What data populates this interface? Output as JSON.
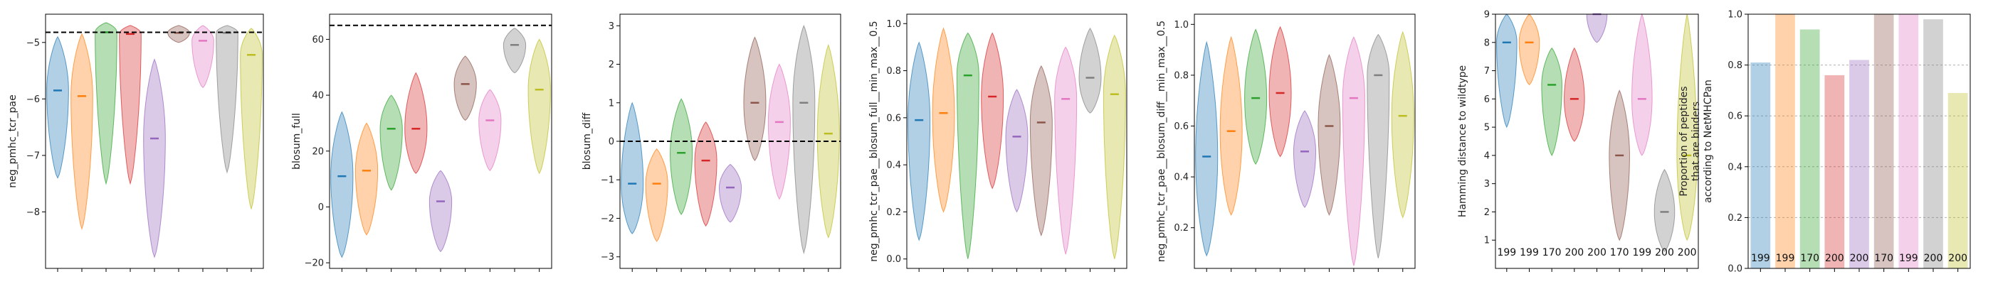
{
  "palette": [
    "#1f77b4",
    "#ff7f0e",
    "#2ca02c",
    "#d62728",
    "#9467bd",
    "#8c564b",
    "#e377c2",
    "#7f7f7f",
    "#bcbd22"
  ],
  "chart_data": [
    {
      "type": "violin",
      "ylabel": "neg_pmhc_tcr_pae",
      "ylim": [
        -9.0,
        -4.5
      ],
      "yticks": [
        -8,
        -7,
        -6,
        -5
      ],
      "tick_labels": [
        "−8",
        "−7",
        "−6",
        "−5"
      ],
      "hline": -4.82,
      "violins": [
        {
          "lo": -7.4,
          "hi": -4.9,
          "med": -5.85
        },
        {
          "lo": -8.3,
          "hi": -4.85,
          "med": -5.95
        },
        {
          "lo": -7.5,
          "hi": -4.65,
          "med": -4.82
        },
        {
          "lo": -7.5,
          "hi": -4.7,
          "med": -4.85
        },
        {
          "lo": -8.8,
          "hi": -5.3,
          "med": -6.7
        },
        {
          "lo": -5.0,
          "hi": -4.7,
          "med": -4.83
        },
        {
          "lo": -5.8,
          "hi": -4.7,
          "med": -4.97
        },
        {
          "lo": -7.3,
          "hi": -4.7,
          "med": -4.83
        },
        {
          "lo": -7.95,
          "hi": -4.75,
          "med": -5.22
        }
      ]
    },
    {
      "type": "violin",
      "ylabel": "blosum_full",
      "ylim": [
        -22,
        69
      ],
      "yticks": [
        -20,
        0,
        20,
        40,
        60
      ],
      "tick_labels": [
        "−20",
        "0",
        "20",
        "40",
        "60"
      ],
      "hline": 65,
      "violins": [
        {
          "lo": -18,
          "hi": 34,
          "med": 11
        },
        {
          "lo": -10,
          "hi": 30,
          "med": 13
        },
        {
          "lo": 6,
          "hi": 40,
          "med": 28
        },
        {
          "lo": 12,
          "hi": 48,
          "med": 28
        },
        {
          "lo": -16,
          "hi": 13,
          "med": 2
        },
        {
          "lo": 31,
          "hi": 54,
          "med": 44
        },
        {
          "lo": 13,
          "hi": 42,
          "med": 31
        },
        {
          "lo": 48,
          "hi": 64,
          "med": 58
        },
        {
          "lo": 12,
          "hi": 60,
          "med": 42
        }
      ]
    },
    {
      "type": "violin",
      "ylabel": "blosum_diff",
      "ylim": [
        -3.3,
        3.3
      ],
      "yticks": [
        -3,
        -2,
        -1,
        0,
        1,
        2,
        3
      ],
      "tick_labels": [
        "−3",
        "−2",
        "−1",
        "0",
        "1",
        "2",
        "3"
      ],
      "hline": 0,
      "violins": [
        {
          "lo": -2.4,
          "hi": 1.0,
          "med": -1.1
        },
        {
          "lo": -2.6,
          "hi": -0.2,
          "med": -1.1
        },
        {
          "lo": -1.9,
          "hi": 1.1,
          "med": -0.3
        },
        {
          "lo": -2.2,
          "hi": 0.5,
          "med": -0.5
        },
        {
          "lo": -2.1,
          "hi": -0.6,
          "med": -1.2
        },
        {
          "lo": -0.5,
          "hi": 2.7,
          "med": 1.0
        },
        {
          "lo": -1.5,
          "hi": 2.0,
          "med": 0.5
        },
        {
          "lo": -2.9,
          "hi": 3.0,
          "med": 1.0
        },
        {
          "lo": -2.5,
          "hi": 2.5,
          "med": 0.2
        }
      ]
    },
    {
      "type": "violin",
      "ylabel": "neg_pmhc_tcr_pae__blosum_full__min_max__0.5",
      "ylim": [
        -0.04,
        1.04
      ],
      "yticks": [
        0.0,
        0.2,
        0.4,
        0.6,
        0.8,
        1.0
      ],
      "tick_labels": [
        "0.0",
        "0.2",
        "0.4",
        "0.6",
        "0.8",
        "1.0"
      ],
      "hline": null,
      "violins": [
        {
          "lo": 0.08,
          "hi": 0.92,
          "med": 0.59
        },
        {
          "lo": 0.2,
          "hi": 0.98,
          "med": 0.62
        },
        {
          "lo": 0.0,
          "hi": 0.96,
          "med": 0.78
        },
        {
          "lo": 0.3,
          "hi": 0.96,
          "med": 0.69
        },
        {
          "lo": 0.2,
          "hi": 0.72,
          "med": 0.52
        },
        {
          "lo": 0.1,
          "hi": 0.82,
          "med": 0.58
        },
        {
          "lo": 0.02,
          "hi": 0.9,
          "med": 0.68
        },
        {
          "lo": 0.62,
          "hi": 0.98,
          "med": 0.77
        },
        {
          "lo": 0.0,
          "hi": 0.95,
          "med": 0.7
        }
      ]
    },
    {
      "type": "violin",
      "ylabel": "neg_pmhc_tcr_pae__blosum_diff__min_max__0.5",
      "ylim": [
        0.04,
        1.04
      ],
      "yticks": [
        0.2,
        0.4,
        0.6,
        0.8,
        1.0
      ],
      "tick_labels": [
        "0.2",
        "0.4",
        "0.6",
        "0.8",
        "1.0"
      ],
      "hline": null,
      "violins": [
        {
          "lo": 0.09,
          "hi": 0.93,
          "med": 0.48
        },
        {
          "lo": 0.25,
          "hi": 0.95,
          "med": 0.58
        },
        {
          "lo": 0.45,
          "hi": 0.98,
          "med": 0.71
        },
        {
          "lo": 0.48,
          "hi": 0.99,
          "med": 0.73
        },
        {
          "lo": 0.28,
          "hi": 0.66,
          "med": 0.5
        },
        {
          "lo": 0.25,
          "hi": 0.88,
          "med": 0.6
        },
        {
          "lo": 0.05,
          "hi": 0.95,
          "med": 0.71
        },
        {
          "lo": 0.08,
          "hi": 0.96,
          "med": 0.8
        },
        {
          "lo": 0.24,
          "hi": 0.97,
          "med": 0.64
        }
      ]
    },
    {
      "type": "violin",
      "ylabel": "Hamming distance to wildtype",
      "ylim": [
        0,
        9
      ],
      "yticks": [
        1,
        2,
        3,
        4,
        5,
        6,
        7,
        8,
        9
      ],
      "tick_labels": [
        "1",
        "2",
        "3",
        "4",
        "5",
        "6",
        "7",
        "8",
        "9"
      ],
      "hline": null,
      "counts": [
        "199",
        "199",
        "170",
        "200",
        "200",
        "170",
        "199",
        "200",
        "200"
      ],
      "violins": [
        {
          "lo": 5.0,
          "hi": 9.0,
          "med": 8.0
        },
        {
          "lo": 6.5,
          "hi": 9.0,
          "med": 8.0
        },
        {
          "lo": 4.0,
          "hi": 7.8,
          "med": 6.5
        },
        {
          "lo": 4.5,
          "hi": 7.8,
          "med": 6.0
        },
        {
          "lo": 8.0,
          "hi": 9.0,
          "med": 9.0
        },
        {
          "lo": 1.0,
          "hi": 6.3,
          "med": 4.0
        },
        {
          "lo": 4.0,
          "hi": 9.0,
          "med": 6.0
        },
        {
          "lo": 0.6,
          "hi": 3.5,
          "med": 2.0
        },
        {
          "lo": 1.0,
          "hi": 9.0,
          "med": 4.0
        }
      ]
    },
    {
      "type": "bar",
      "ylabel": [
        "Proportion of peptides",
        "that are binders",
        "according to NetMHCPan"
      ],
      "ylim": [
        0,
        1.0
      ],
      "yticks": [
        0,
        0.2,
        0.4,
        0.6,
        0.8,
        1.0
      ],
      "tick_labels": [
        "0.0",
        "0.2",
        "0.4",
        "0.6",
        "0.8",
        "1.0"
      ],
      "grid": true,
      "values": [
        0.81,
        1.0,
        0.94,
        0.76,
        0.82,
        1.0,
        1.0,
        0.98,
        0.69
      ],
      "counts": [
        "199",
        "199",
        "170",
        "200",
        "200",
        "170",
        "199",
        "200",
        "200"
      ]
    }
  ]
}
